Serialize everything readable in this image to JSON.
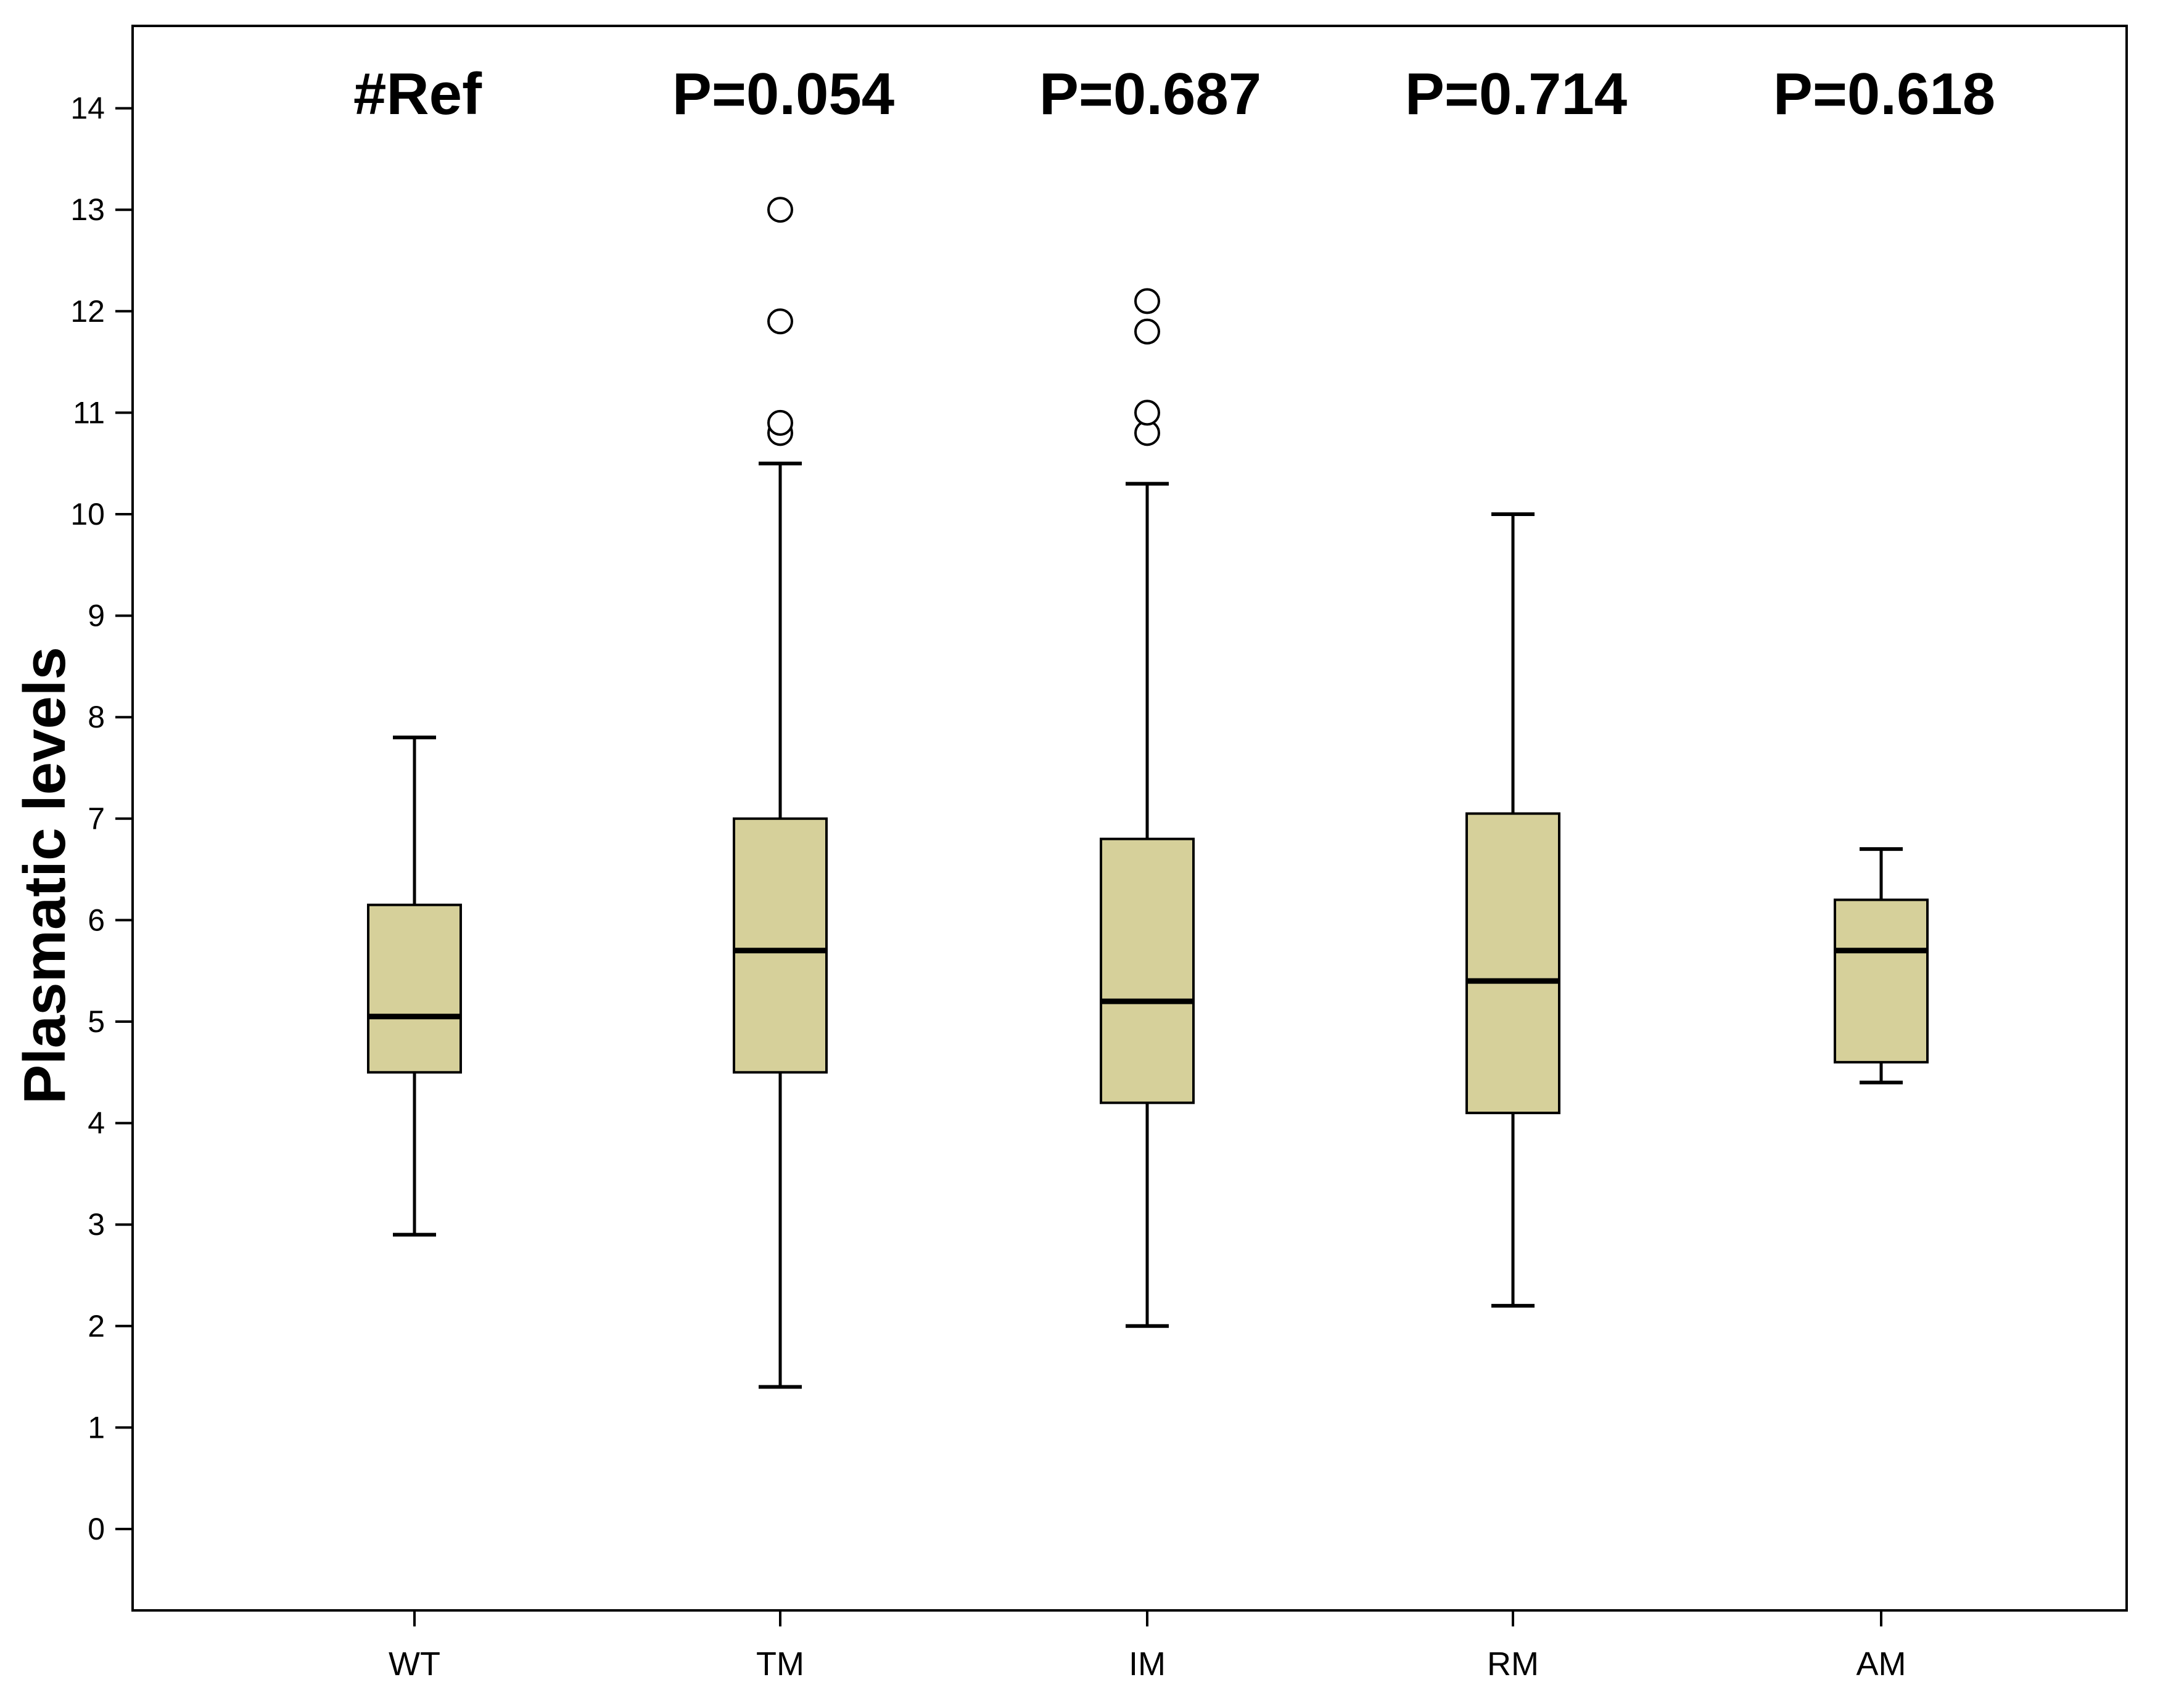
{
  "chart_data": {
    "type": "boxplot",
    "ylabel": "Plasmatic levels",
    "xlabel": "",
    "ylim": [
      -0.8,
      14.8
    ],
    "yticks": [
      0,
      1,
      2,
      3,
      4,
      5,
      6,
      7,
      8,
      9,
      10,
      11,
      12,
      13,
      14
    ],
    "grid": false,
    "colors": {
      "box_fill": "#d6d09a",
      "stroke": "#000000",
      "outlier_fill": "#ffffff"
    },
    "categories": [
      "WT",
      "TM",
      "IM",
      "RM",
      "AM"
    ],
    "annotations": [
      "#Ref",
      "P=0.054",
      "P=0.687",
      "P=0.714",
      "P=0.618"
    ],
    "boxes": [
      {
        "category": "WT",
        "whisker_low": 2.9,
        "q1": 4.5,
        "median": 5.05,
        "q3": 6.15,
        "whisker_high": 7.8,
        "outliers": []
      },
      {
        "category": "TM",
        "whisker_low": 1.4,
        "q1": 4.5,
        "median": 5.7,
        "q3": 7.0,
        "whisker_high": 10.5,
        "outliers": [
          10.8,
          10.9,
          11.9,
          13.0
        ]
      },
      {
        "category": "IM",
        "whisker_low": 2.0,
        "q1": 4.2,
        "median": 5.2,
        "q3": 6.8,
        "whisker_high": 10.3,
        "outliers": [
          10.8,
          11.0,
          11.8,
          12.1
        ]
      },
      {
        "category": "RM",
        "whisker_low": 2.2,
        "q1": 4.1,
        "median": 5.4,
        "q3": 7.05,
        "whisker_high": 10.0,
        "outliers": []
      },
      {
        "category": "AM",
        "whisker_low": 4.4,
        "q1": 4.6,
        "median": 5.7,
        "q3": 6.2,
        "whisker_high": 6.7,
        "outliers": []
      }
    ]
  }
}
